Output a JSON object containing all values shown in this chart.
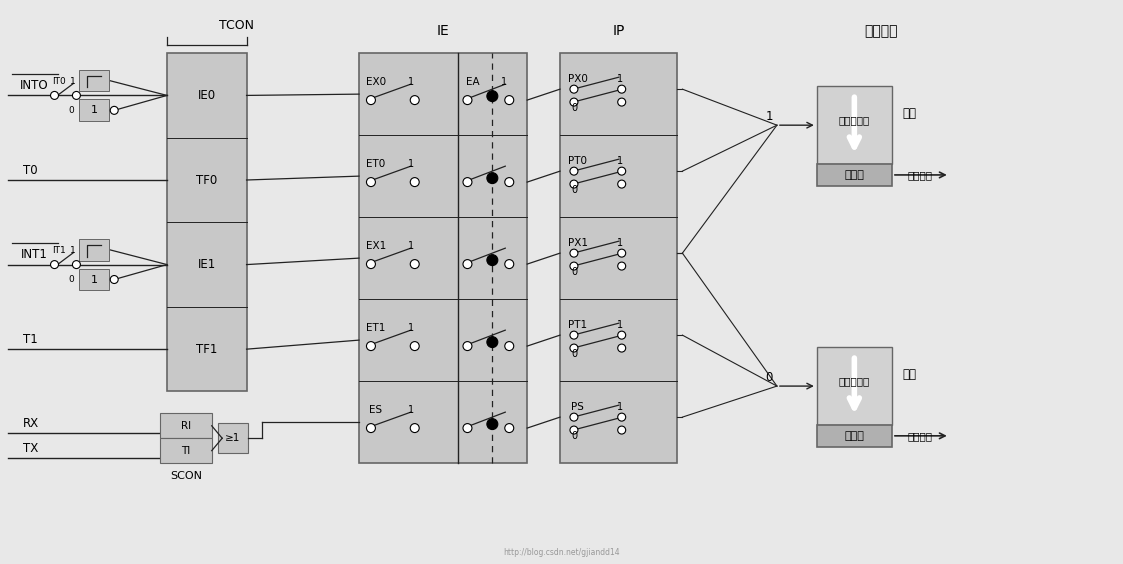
{
  "bg_color": "#e8e8e8",
  "box_fill": "#c8c8c8",
  "box_edge": "#666666",
  "line_color": "#222222",
  "white": "#ffffff",
  "black": "#000000",
  "title": "硬件查询",
  "tcon_label": "TCON",
  "scon_label": "SCON",
  "ie_label": "IE",
  "ip_label": "IP",
  "tcon_rows": [
    "IE0",
    "TF0",
    "IE1",
    "TF1"
  ],
  "ie_left_rows": [
    "EX0",
    "ET0",
    "EX1",
    "ET1",
    "ES"
  ],
  "ip_rows": [
    "PX0",
    "PT0",
    "PX1",
    "PT1",
    "PS"
  ],
  "watermark": "http://blog.csdn.net/gjiandd14",
  "fig_w": 11.23,
  "fig_h": 5.64,
  "dpi": 100
}
